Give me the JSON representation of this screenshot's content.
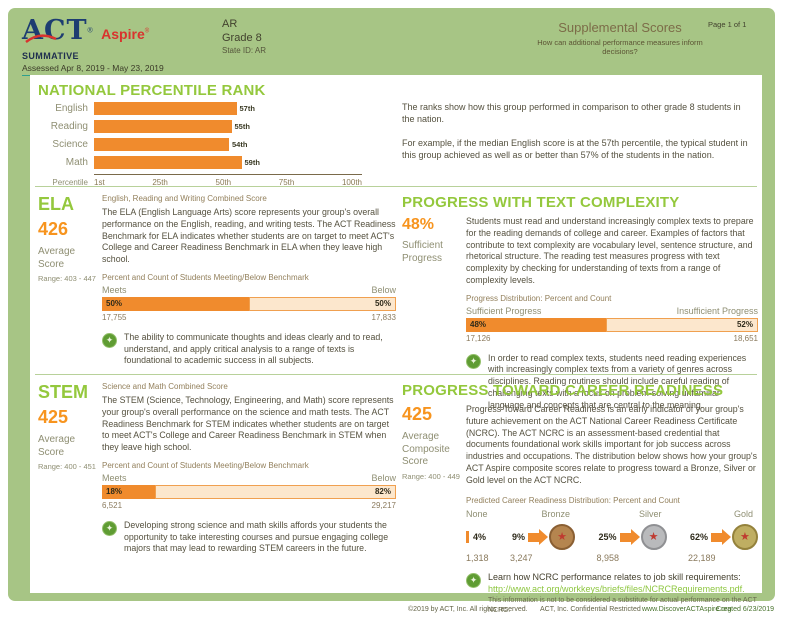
{
  "colors": {
    "band_green": "#a7c585",
    "heading_green": "#94c83d",
    "score_orange": "#f7941e",
    "bar_orange": "#f08b2d",
    "bar_pale": "#fce7cd",
    "body_text": "#55513f",
    "link_green": "#8dc63f",
    "logo_navy": "#1d3d71",
    "logo_red": "#d9332e"
  },
  "header": {
    "logo_act": "ACT",
    "logo_aspire": "Aspire",
    "reg_mark": "®",
    "summative": "SUMMATIVE",
    "assessed": "Assessed Apr 8, 2019 - May 23, 2019",
    "region": "AR",
    "grade": "Grade 8",
    "state_id": "State ID: AR",
    "title": "Supplemental Scores",
    "subtitle": "How can additional performance measures inform decisions?",
    "page": "Page 1 of 1"
  },
  "npr": {
    "title": "NATIONAL PERCENTILE RANK",
    "chart_data": {
      "type": "bar",
      "orientation": "horizontal",
      "categories": [
        "English",
        "Reading",
        "Science",
        "Math"
      ],
      "values": [
        57,
        55,
        54,
        59
      ],
      "value_labels": [
        "57th",
        "55th",
        "54th",
        "59th"
      ],
      "axis_label": "Percentile",
      "ticks": [
        "1st",
        "25th",
        "50th",
        "75th",
        "100th"
      ],
      "xlim": [
        1,
        100
      ],
      "bar_color": "#f08b2d"
    },
    "desc1": "The ranks show how this group performed in comparison to other grade 8 students in the nation.",
    "desc2": "For example, if the median English score is at the 57th percentile, the typical student in this group achieved as well as or better than 57% of the students in the nation."
  },
  "ela": {
    "title": "ELA",
    "score": "426",
    "score_label": "Average Score",
    "range": "Range: 403 - 447",
    "subtitle": "English, Reading and Writing Combined Score",
    "body": "The ELA (English Language Arts) score represents your group's overall performance on the English, reading, and writing tests. The ACT Readiness Benchmark for ELA indicates whether students are on target to meet ACT's College and Career Readiness Benchmark in ELA when they leave high school.",
    "bar_title": "Percent and Count of Students Meeting/Below Benchmark",
    "meets_label": "Meets",
    "below_label": "Below",
    "meets_pct": 50,
    "meets_pct_label": "50%",
    "below_pct_label": "50%",
    "meets_count": "17,755",
    "below_count": "17,833",
    "note": "The ability to communicate thoughts and ideas clearly and to read, understand, and apply critical analysis to a range of texts is foundational to academic success in all subjects."
  },
  "text_complexity": {
    "title": "PROGRESS WITH TEXT COMPLEXITY",
    "pct": "48%",
    "pct_label": "Sufficient Progress",
    "body": "Students must read and understand increasingly complex texts to prepare for the reading demands of college and career. Examples of factors that contribute to text complexity are vocabulary level, sentence structure, and rhetorical structure. The reading test measures progress with text complexity by checking for understanding of texts from a range of complexity levels.",
    "bar_title": "Progress Distribution: Percent and Count",
    "left_label": "Sufficient Progress",
    "right_label": "Insufficient Progress",
    "left_pct": 48,
    "left_pct_label": "48%",
    "right_pct_label": "52%",
    "left_count": "17,126",
    "right_count": "18,651",
    "note": "In order to read complex texts, students need reading experiences with increasingly complex texts from a variety of genres across disciplines. Reading routines should include careful reading of challenging texts with a focus on problem-solving unfamiliar language and concepts that are central to the meaning."
  },
  "stem": {
    "title": "STEM",
    "score": "425",
    "score_label": "Average Score",
    "range": "Range: 400 - 451",
    "subtitle": "Science and Math Combined Score",
    "body": "The STEM (Science, Technology, Engineering, and Math) score represents your group's overall performance on the science and math tests. The ACT Readiness Benchmark for STEM indicates whether students are on target to meet ACT's College and Career Readiness Benchmark in STEM when they leave high school.",
    "bar_title": "Percent and Count of Students Meeting/Below Benchmark",
    "meets_label": "Meets",
    "below_label": "Below",
    "meets_pct": 18,
    "meets_pct_label": "18%",
    "below_pct_label": "82%",
    "meets_count": "6,521",
    "below_count": "29,217",
    "note": "Developing strong science and math skills affords your students the opportunity to take interesting courses and pursue engaging college majors that may lead to rewarding STEM careers in the future."
  },
  "career": {
    "title": "PROGRESS TOWARD CAREER READINESS",
    "score": "425",
    "score_label": "Average Composite Score",
    "range": "Range: 400 - 449",
    "body": "Progress Toward Career Readiness is an early indicator of your group's future achievement on the ACT National Career Readiness Certificate (NCRC). The ACT NCRC is an assessment-based credential that documents foundational work skills important for job success across industries and occupations. The distribution below shows how your group's ACT Aspire composite scores relate to progress toward a Bronze, Silver or Gold level on the ACT NCRC.",
    "dist_title": "Predicted Career Readiness Distribution: Percent and Count",
    "levels": [
      {
        "name": "None",
        "pct": "4%",
        "count": "1,318"
      },
      {
        "name": "Bronze",
        "pct": "9%",
        "count": "3,247"
      },
      {
        "name": "Silver",
        "pct": "25%",
        "count": "8,958"
      },
      {
        "name": "Gold",
        "pct": "62%",
        "count": "22,189"
      }
    ],
    "learn": "Learn how NCRC performance relates to job skill requirements:",
    "link": "http://www.act.org/workkeys/briefs/files/NCRCRequirements.pdf.",
    "disclaimer": "This information is not to be considered a substitute for actual performance on the ACT NCRC."
  },
  "footer": {
    "copyright": "©2019 by ACT, Inc. All rights reserved.",
    "confidential": "ACT, Inc. Confidential Restricted",
    "site": "www.DiscoverACTAspire.org",
    "created": "Created 6/23/2019"
  }
}
